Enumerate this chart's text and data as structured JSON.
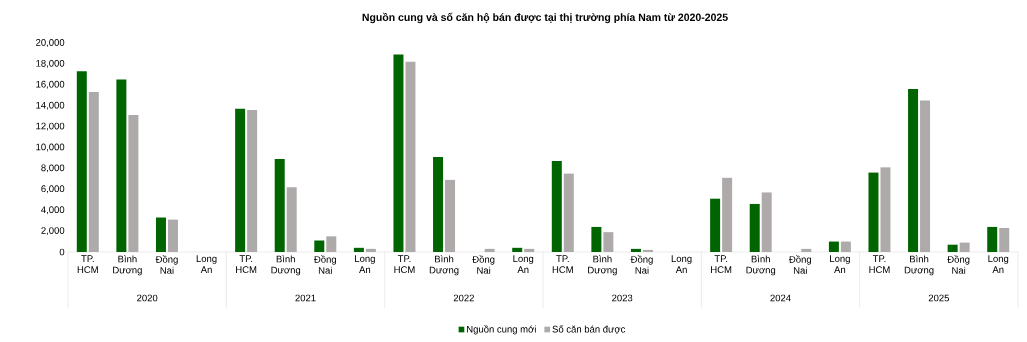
{
  "chart_data": {
    "type": "bar",
    "title": "Nguồn cung và số căn hộ bán được tại thị trường phía Nam từ 2020-2025",
    "categories": [
      "TP. HCM",
      "Bình Dương",
      "Đồng Nai",
      "Long An",
      "TP. HCM",
      "Bình Dương",
      "Đồng Nai",
      "Long An",
      "TP. HCM",
      "Bình Dương",
      "Đồng Nai",
      "Long An",
      "TP. HCM",
      "Bình Dương",
      "Đồng Nai",
      "Long An",
      "TP. HCM",
      "Bình Dương",
      "Đồng Nai",
      "Long An",
      "TP. HCM",
      "Bình Dương",
      "Đồng Nai",
      "Long An"
    ],
    "annotations": [
      "2020",
      "2021",
      "2022",
      "2023",
      "2024",
      "2025"
    ],
    "series": [
      {
        "name": "Nguồn cung mới",
        "color": "#006400",
        "values": [
          17300,
          16500,
          3300,
          0,
          13700,
          8900,
          1100,
          400,
          18900,
          9100,
          0,
          400,
          8700,
          2400,
          300,
          0,
          5100,
          4600,
          0,
          1000,
          7600,
          15600,
          700,
          2400
        ]
      },
      {
        "name": "Số căn bán được",
        "color": "#aeaaaa",
        "values": [
          15300,
          13100,
          3100,
          0,
          13600,
          6200,
          1500,
          300,
          18200,
          6900,
          300,
          300,
          7500,
          1900,
          200,
          0,
          7100,
          5700,
          300,
          1000,
          8100,
          14500,
          900,
          2300
        ]
      }
    ],
    "ylim": [
      0,
      20000
    ],
    "yticks": [
      {
        "value": 0,
        "label": "0"
      },
      {
        "value": 2000,
        "label": "2,000"
      },
      {
        "value": 4000,
        "label": "4,000"
      },
      {
        "value": 6000,
        "label": "6,000"
      },
      {
        "value": 8000,
        "label": "8,000"
      },
      {
        "value": 10000,
        "label": "10,000"
      },
      {
        "value": 12000,
        "label": "12,000"
      },
      {
        "value": 14000,
        "label": "14,000"
      },
      {
        "value": 16000,
        "label": "16,000"
      },
      {
        "value": 18000,
        "label": "18,000"
      },
      {
        "value": 20000,
        "label": "20,000"
      }
    ],
    "legend": "bottom"
  }
}
